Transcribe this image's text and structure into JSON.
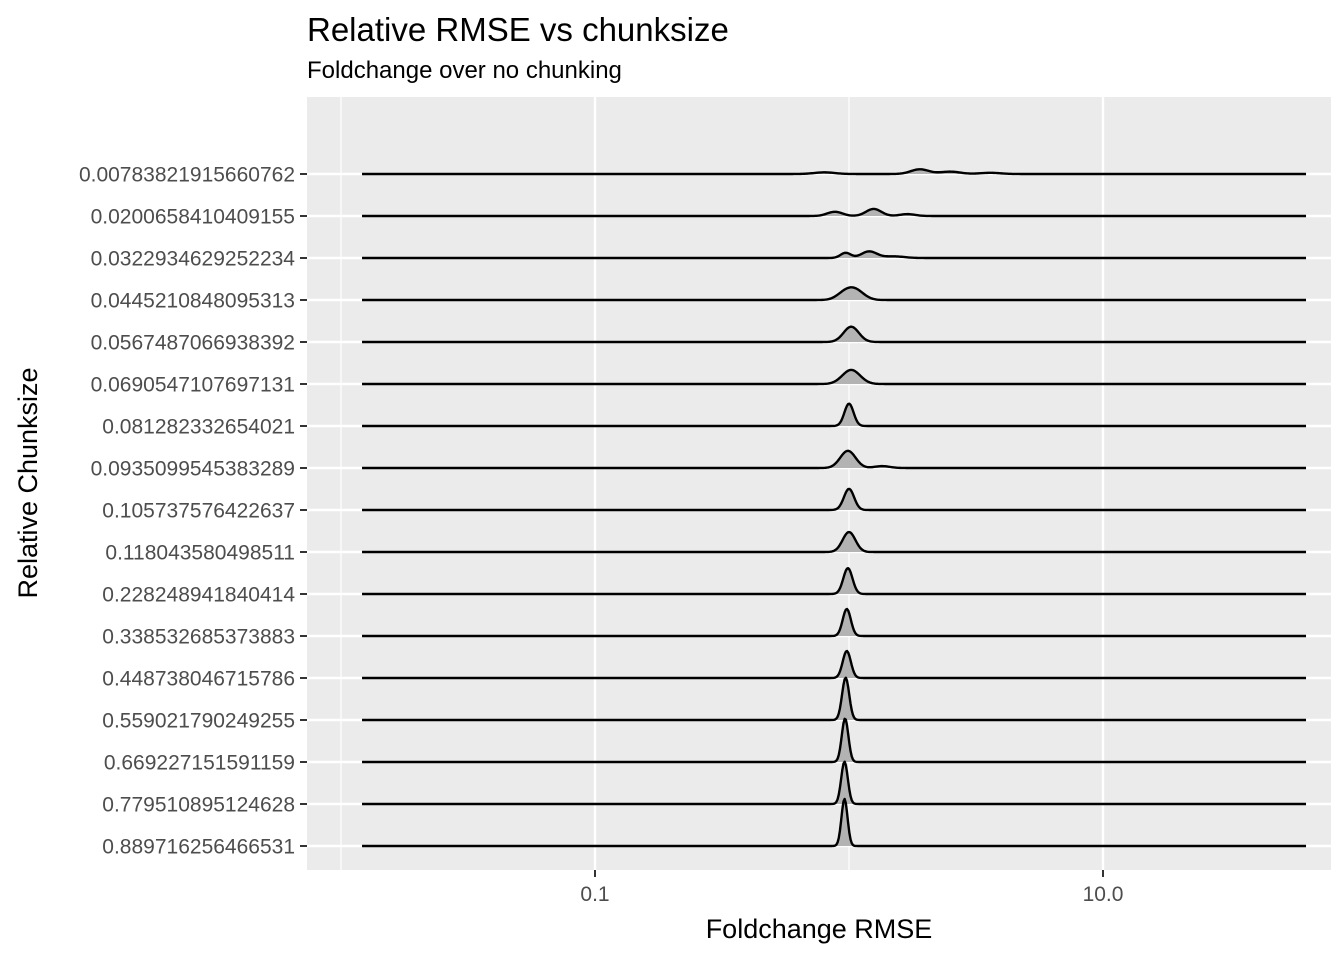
{
  "chart_data": {
    "type": "ridgeline",
    "title": "Relative RMSE vs chunksize",
    "subtitle": "Foldchange over no chunking",
    "xlabel": "Foldchange RMSE",
    "ylabel": "Relative Chunksize",
    "x_scale": "log10",
    "x_ticks": [
      {
        "value": 0.1,
        "label": "0.1"
      },
      {
        "value": 10.0,
        "label": "10.0"
      }
    ],
    "xlim": [
      0.012,
      200
    ],
    "grid": true,
    "legend": "none",
    "fill_color": "#b3b3b3",
    "line_color": "#000000",
    "panel_color": "#ebebeb",
    "series": [
      {
        "name": "0.889716256466531",
        "peaks": [
          {
            "x": 0.96,
            "h": 2.0,
            "w": 0.012
          }
        ]
      },
      {
        "name": "0.779510895124628",
        "peaks": [
          {
            "x": 0.96,
            "h": 1.8,
            "w": 0.013
          }
        ]
      },
      {
        "name": "0.669227151591159",
        "peaks": [
          {
            "x": 0.965,
            "h": 1.85,
            "w": 0.013
          }
        ]
      },
      {
        "name": "0.559021790249255",
        "peaks": [
          {
            "x": 0.97,
            "h": 1.8,
            "w": 0.014
          }
        ]
      },
      {
        "name": "0.448738046715786",
        "peaks": [
          {
            "x": 0.98,
            "h": 1.15,
            "w": 0.016
          }
        ]
      },
      {
        "name": "0.338532685373883",
        "peaks": [
          {
            "x": 0.98,
            "h": 1.15,
            "w": 0.016
          }
        ]
      },
      {
        "name": "0.228248941840414",
        "peaks": [
          {
            "x": 0.99,
            "h": 1.1,
            "w": 0.018
          }
        ]
      },
      {
        "name": "0.118043580498511",
        "peaks": [
          {
            "x": 1.0,
            "h": 0.85,
            "w": 0.025
          }
        ]
      },
      {
        "name": "0.105737576422637",
        "peaks": [
          {
            "x": 1.0,
            "h": 0.9,
            "w": 0.02
          }
        ]
      },
      {
        "name": "0.0935099545383289",
        "peaks": [
          {
            "x": 0.99,
            "h": 0.73,
            "w": 0.03
          },
          {
            "x": 1.35,
            "h": 0.08,
            "w": 0.03
          }
        ]
      },
      {
        "name": "0.081282332654021",
        "peaks": [
          {
            "x": 1.0,
            "h": 0.95,
            "w": 0.018
          }
        ]
      },
      {
        "name": "0.0690547107697131",
        "peaks": [
          {
            "x": 1.02,
            "h": 0.6,
            "w": 0.035
          }
        ]
      },
      {
        "name": "0.0567487066938392",
        "peaks": [
          {
            "x": 1.02,
            "h": 0.65,
            "w": 0.03
          }
        ]
      },
      {
        "name": "0.0445210848095313",
        "peaks": [
          {
            "x": 1.05,
            "h": 0.45,
            "w": 0.035
          },
          {
            "x": 0.95,
            "h": 0.2,
            "w": 0.03
          }
        ]
      },
      {
        "name": "0.0322934629252234",
        "peaks": [
          {
            "x": 0.97,
            "h": 0.22,
            "w": 0.02
          },
          {
            "x": 1.2,
            "h": 0.28,
            "w": 0.03
          },
          {
            "x": 1.5,
            "h": 0.07,
            "w": 0.04
          }
        ]
      },
      {
        "name": "0.0200658410409155",
        "peaks": [
          {
            "x": 0.88,
            "h": 0.18,
            "w": 0.03
          },
          {
            "x": 1.25,
            "h": 0.3,
            "w": 0.03
          },
          {
            "x": 1.7,
            "h": 0.08,
            "w": 0.03
          }
        ]
      },
      {
        "name": "0.00783821915660762",
        "peaks": [
          {
            "x": 0.8,
            "h": 0.07,
            "w": 0.04
          },
          {
            "x": 1.9,
            "h": 0.2,
            "w": 0.035
          },
          {
            "x": 2.5,
            "h": 0.1,
            "w": 0.04
          },
          {
            "x": 3.6,
            "h": 0.05,
            "w": 0.04
          }
        ]
      }
    ]
  }
}
